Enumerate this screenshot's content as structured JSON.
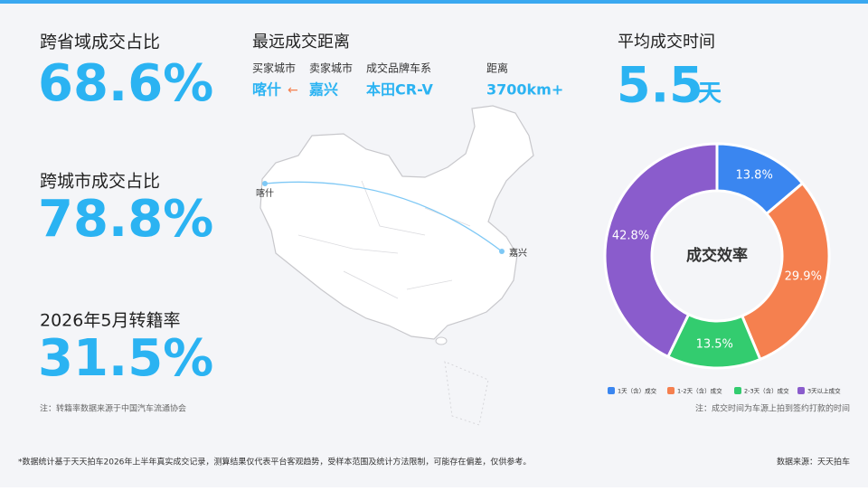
{
  "stats": [
    {
      "label": "跨省域成交占比",
      "value": "68.6%"
    },
    {
      "label": "跨城市成交占比",
      "value": "78.8%"
    },
    {
      "label": "2026年5月转籍率",
      "value": "31.5%"
    }
  ],
  "stats_note": "注：转籍率数据来源于中国汽车流通协会",
  "route": {
    "title": "最远成交距离",
    "labels": [
      "买家城市",
      "卖家城市",
      "成交品牌车系",
      "距离"
    ],
    "buyer_city": "喀什",
    "arrow": "←",
    "seller_city": "嘉兴",
    "model": "本田CR-V",
    "distance": "3700km+",
    "map_labels": [
      "喀什",
      "嘉兴"
    ]
  },
  "avg_time": {
    "title": "平均成交时间",
    "value": "5.5",
    "unit": "天"
  },
  "chart_data": {
    "type": "pie",
    "donut": true,
    "center_label": "成交效率",
    "categories": [
      "1天（含）成交",
      "1-2天（含）成交",
      "2-3天（含）成交",
      "3天以上成交"
    ],
    "values": [
      13.8,
      29.9,
      13.5,
      42.8
    ],
    "value_labels": [
      "13.8%",
      "29.9%",
      "13.5%",
      "42.8%"
    ],
    "colors": [
      "#3a86f0",
      "#f5804f",
      "#33cc6f",
      "#8a5ccc"
    ],
    "legend": "bottom"
  },
  "chart_note": "注：成交时间为车源上拍到签约打款的时间",
  "footer": {
    "disclaimer": "*数据统计基于天天拍车2026年上半年真实成交记录，测算结果仅代表平台客观趋势，受样本范围及统计方法限制，可能存在偏差，仅供参考。",
    "source": "数据来源：天天拍车"
  }
}
